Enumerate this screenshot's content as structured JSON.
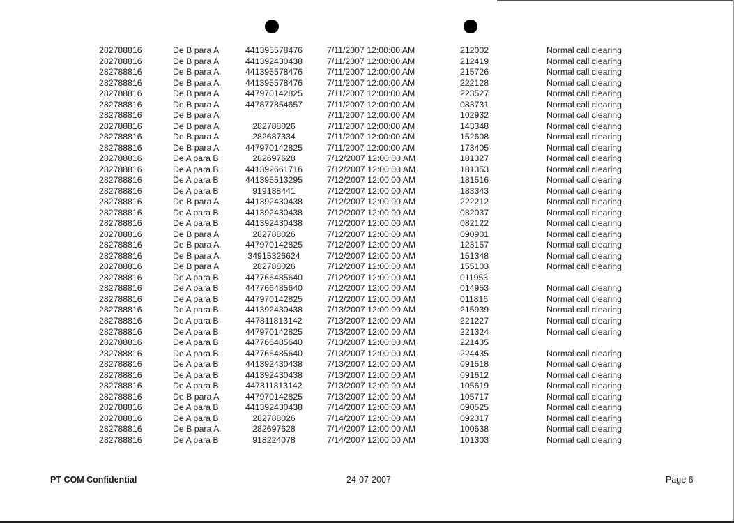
{
  "table": {
    "rows": [
      [
        "282788816",
        "De B para A",
        "441395578476",
        "7/11/2007 12:00:00 AM",
        "212002",
        "Normal call clearing"
      ],
      [
        "282788816",
        "De B para A",
        "441392430438",
        "7/11/2007 12:00:00 AM",
        "212419",
        "Normal call clearing"
      ],
      [
        "282788816",
        "De B para A",
        "441395578476",
        "7/11/2007 12:00:00 AM",
        "215726",
        "Normal call clearing"
      ],
      [
        "282788816",
        "De B para A",
        "441395578476",
        "7/11/2007 12:00:00 AM",
        "222128",
        "Normal call clearing"
      ],
      [
        "282788816",
        "De B para A",
        "447970142825",
        "7/11/2007 12:00:00 AM",
        "223527",
        "Normal call clearing"
      ],
      [
        "282788816",
        "De B para A",
        "447877854657",
        "7/11/2007 12:00:00 AM",
        "083731",
        "Normal call clearing"
      ],
      [
        "282788816",
        "De B para A",
        "",
        "7/11/2007 12:00:00 AM",
        "102932",
        "Normal call clearing"
      ],
      [
        "282788816",
        "De B para A",
        "282788026",
        "7/11/2007 12:00:00 AM",
        "143348",
        "Normal call clearing"
      ],
      [
        "282788816",
        "De B para A",
        "282687334",
        "7/11/2007 12:00:00 AM",
        "152608",
        "Normal call clearing"
      ],
      [
        "282788816",
        "De B para A",
        "447970142825",
        "7/11/2007 12:00:00 AM",
        "173405",
        "Normal call clearing"
      ],
      [
        "282788816",
        "De A para B",
        "282697628",
        "7/12/2007 12:00:00 AM",
        "181327",
        "Normal call clearing"
      ],
      [
        "282788816",
        "De A para B",
        "441392661716",
        "7/12/2007 12:00:00 AM",
        "181353",
        "Normal call clearing"
      ],
      [
        "282788816",
        "De A para B",
        "441395513295",
        "7/12/2007 12:00:00 AM",
        "181516",
        "Normal call clearing"
      ],
      [
        "282788816",
        "De A para B",
        "919188441",
        "7/12/2007 12:00:00 AM",
        "183343",
        "Normal call clearing"
      ],
      [
        "282788816",
        "De B para A",
        "441392430438",
        "7/12/2007 12:00:00 AM",
        "222212",
        "Normal call clearing"
      ],
      [
        "282788816",
        "De A para B",
        "441392430438",
        "7/12/2007 12:00:00 AM",
        "082037",
        "Normal call clearing"
      ],
      [
        "282788816",
        "De A para B",
        "441392430438",
        "7/12/2007 12:00:00 AM",
        "082122",
        "Normal call clearing"
      ],
      [
        "282788816",
        "De B para A",
        "282788026",
        "7/12/2007 12:00:00 AM",
        "090901",
        "Normal call clearing"
      ],
      [
        "282788816",
        "De B para A",
        "447970142825",
        "7/12/2007 12:00:00 AM",
        "123157",
        "Normal call clearing"
      ],
      [
        "282788816",
        "De B para A",
        "34915326624",
        "7/12/2007 12:00:00 AM",
        "151348",
        "Normal call clearing"
      ],
      [
        "282788816",
        "De B para A",
        "282788026",
        "7/12/2007 12:00:00 AM",
        "155103",
        "Normal call clearing"
      ],
      [
        "282788816",
        "De A para B",
        "447766485640",
        "7/12/2007 12:00:00 AM",
        "011953",
        ""
      ],
      [
        "282788816",
        "De A para B",
        "447766485640",
        "7/12/2007 12:00:00 AM",
        "014953",
        "Normal call clearing"
      ],
      [
        "282788816",
        "De A para B",
        "447970142825",
        "7/12/2007 12:00:00 AM",
        "011816",
        "Normal call clearing"
      ],
      [
        "282788816",
        "De A para B",
        "441392430438",
        "7/13/2007 12:00:00 AM",
        "215939",
        "Normal call clearing"
      ],
      [
        "282788816",
        "De A para B",
        "447811813142",
        "7/13/2007 12:00:00 AM",
        "221227",
        "Normal call clearing"
      ],
      [
        "282788816",
        "De A para B",
        "447970142825",
        "7/13/2007 12:00:00 AM",
        "221324",
        "Normal call clearing"
      ],
      [
        "282788816",
        "De A para B",
        "447766485640",
        "7/13/2007 12:00:00 AM",
        "221435",
        ""
      ],
      [
        "282788816",
        "De A para B",
        "447766485640",
        "7/13/2007 12:00:00 AM",
        "224435",
        "Normal call clearing"
      ],
      [
        "282788816",
        "De A para B",
        "441392430438",
        "7/13/2007 12:00:00 AM",
        "091518",
        "Normal call clearing"
      ],
      [
        "282788816",
        "De A para B",
        "441392430438",
        "7/13/2007 12:00:00 AM",
        "091612",
        "Normal call clearing"
      ],
      [
        "282788816",
        "De A para B",
        "447811813142",
        "7/13/2007 12:00:00 AM",
        "105619",
        "Normal call clearing"
      ],
      [
        "282788816",
        "De B para A",
        "447970142825",
        "7/13/2007 12:00:00 AM",
        "105717",
        "Normal call clearing"
      ],
      [
        "282788816",
        "De A para B",
        "441392430438",
        "7/14/2007 12:00:00 AM",
        "090525",
        "Normal call clearing"
      ],
      [
        "282788816",
        "De A para B",
        "282788026",
        "7/14/2007 12:00:00 AM",
        "092317",
        "Normal call clearing"
      ],
      [
        "282788816",
        "De B para A",
        "282697628",
        "7/14/2007 12:00:00 AM",
        "100638",
        "Normal call clearing"
      ],
      [
        "282788816",
        "De A para B",
        "918224078",
        "7/14/2007 12:00:00 AM",
        "101303",
        "Normal call clearing"
      ]
    ]
  },
  "footer": {
    "left": "PT COM Confidential",
    "center": "24-07-2007",
    "right": "Page 6"
  }
}
